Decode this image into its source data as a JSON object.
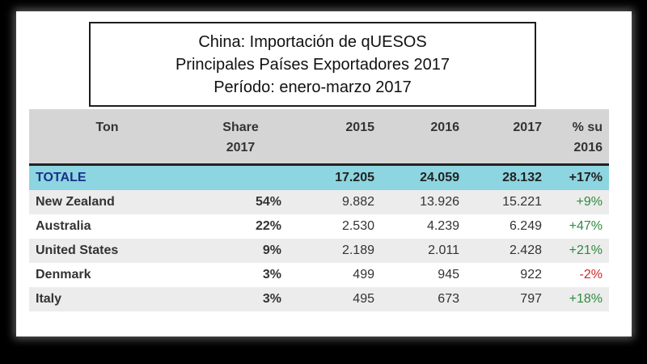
{
  "title": {
    "line1": "China: Importación de qUESOS",
    "line2": "Principales Países Exportadores 2017",
    "line3": "Período: enero-marzo 2017"
  },
  "table": {
    "headers": {
      "ton": "Ton",
      "share_line1": "Share",
      "share_line2": "2017",
      "y2015": "2015",
      "y2016": "2016",
      "y2017": "2017",
      "pct_line1": "% su",
      "pct_line2": "2016"
    },
    "total": {
      "name": "TOTALE",
      "share": "",
      "y2015": "17.205",
      "y2016": "24.059",
      "y2017": "28.132",
      "pct": "+17%"
    },
    "rows": [
      {
        "name": "New Zealand",
        "share": "54%",
        "y2015": "9.882",
        "y2016": "13.926",
        "y2017": "15.221",
        "pct": "+9%"
      },
      {
        "name": "Australia",
        "share": "22%",
        "y2015": "2.530",
        "y2016": "4.239",
        "y2017": "6.249",
        "pct": "+47%"
      },
      {
        "name": "United States",
        "share": "9%",
        "y2015": "2.189",
        "y2016": "2.011",
        "y2017": "2.428",
        "pct": "+21%"
      },
      {
        "name": "Denmark",
        "share": "3%",
        "y2015": "499",
        "y2016": "945",
        "y2017": "922",
        "pct": "-2%"
      },
      {
        "name": "Italy",
        "share": "3%",
        "y2015": "495",
        "y2016": "673",
        "y2017": "797",
        "pct": "+18%"
      }
    ]
  },
  "colors": {
    "header_bg": "#d5d5d5",
    "total_row_bg": "#8dd5e0",
    "positive": "#2e8b3e",
    "negative": "#d32424"
  }
}
